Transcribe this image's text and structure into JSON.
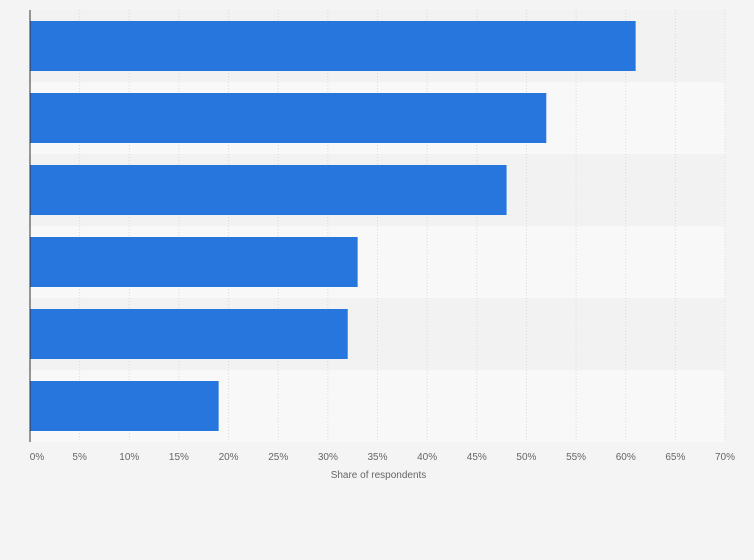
{
  "chart_data": {
    "type": "bar",
    "orientation": "horizontal",
    "categories": [
      "",
      "",
      "",
      "",
      "",
      ""
    ],
    "values": [
      61,
      52,
      48,
      33,
      32,
      19
    ],
    "xlabel": "Share of respondents",
    "ylabel": "",
    "xlim": [
      0,
      70
    ],
    "x_ticks": [
      "0%",
      "5%",
      "10%",
      "15%",
      "20%",
      "25%",
      "30%",
      "35%",
      "40%",
      "45%",
      "50%",
      "55%",
      "60%",
      "65%",
      "70%"
    ],
    "grid": true,
    "colors": {
      "bar": "#2676dd",
      "band_dark": "#f2f2f2",
      "band_light": "#f8f8f8",
      "grid": "#d9d9d9",
      "axis": "#333333"
    }
  }
}
